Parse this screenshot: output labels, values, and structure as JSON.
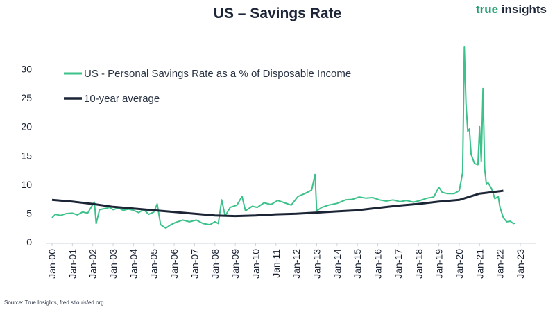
{
  "header": {
    "title": "US – Savings Rate"
  },
  "brand": {
    "word1": "true",
    "word2": "insights"
  },
  "source": "Source: True Insights, fred.stlouisfed.org",
  "colors": {
    "savings": "#3cc18a",
    "average": "#1b2536",
    "axis": "#cfd4da"
  },
  "chart_data": {
    "type": "line",
    "title": "US – Savings Rate",
    "xlabel": "",
    "ylabel": "",
    "ylim": [
      0,
      35
    ],
    "yticks": [
      0,
      5,
      10,
      15,
      20,
      25,
      30
    ],
    "xticks": [
      "Jan-00",
      "Jan-01",
      "Jan-02",
      "Jan-03",
      "Jan-04",
      "Jan-05",
      "Jan-06",
      "Jan-07",
      "Jan-08",
      "Jan-09",
      "Jan-10",
      "Jan-11",
      "Jan-12",
      "Jan-13",
      "Jan-14",
      "Jan-15",
      "Jan-16",
      "Jan-17",
      "Jan-18",
      "Jan-19",
      "Jan-20",
      "Jan-21",
      "Jan-22",
      "Jan-23"
    ],
    "grid": false,
    "legend": "top-left",
    "series": [
      {
        "name": "US - Personal Savings Rate as a % of Disposable Income",
        "points": [
          [
            "2000-01",
            4.2
          ],
          [
            "2000-03",
            4.8
          ],
          [
            "2000-06",
            4.6
          ],
          [
            "2000-09",
            4.9
          ],
          [
            "2001-01",
            5.0
          ],
          [
            "2001-04",
            4.7
          ],
          [
            "2001-07",
            5.2
          ],
          [
            "2001-10",
            5.0
          ],
          [
            "2002-01",
            6.5
          ],
          [
            "2002-02",
            6.9
          ],
          [
            "2002-03",
            3.2
          ],
          [
            "2002-05",
            5.6
          ],
          [
            "2002-08",
            5.8
          ],
          [
            "2002-11",
            6.0
          ],
          [
            "2003-01",
            5.6
          ],
          [
            "2003-04",
            5.9
          ],
          [
            "2003-07",
            5.5
          ],
          [
            "2003-10",
            5.7
          ],
          [
            "2004-01",
            5.5
          ],
          [
            "2004-04",
            5.1
          ],
          [
            "2004-07",
            5.6
          ],
          [
            "2004-10",
            4.8
          ],
          [
            "2005-01",
            5.2
          ],
          [
            "2005-03",
            6.6
          ],
          [
            "2005-05",
            3.0
          ],
          [
            "2005-08",
            2.4
          ],
          [
            "2005-11",
            3.0
          ],
          [
            "2006-02",
            3.4
          ],
          [
            "2006-06",
            3.8
          ],
          [
            "2006-10",
            3.5
          ],
          [
            "2007-02",
            3.8
          ],
          [
            "2007-06",
            3.2
          ],
          [
            "2007-10",
            3.0
          ],
          [
            "2008-01",
            3.5
          ],
          [
            "2008-03",
            3.2
          ],
          [
            "2008-05",
            7.3
          ],
          [
            "2008-07",
            4.5
          ],
          [
            "2008-10",
            6.0
          ],
          [
            "2009-02",
            6.4
          ],
          [
            "2009-05",
            7.9
          ],
          [
            "2009-07",
            5.4
          ],
          [
            "2009-11",
            6.2
          ],
          [
            "2010-02",
            6.0
          ],
          [
            "2010-06",
            6.8
          ],
          [
            "2010-10",
            6.5
          ],
          [
            "2011-02",
            7.2
          ],
          [
            "2011-06",
            6.8
          ],
          [
            "2011-10",
            6.4
          ],
          [
            "2012-02",
            7.9
          ],
          [
            "2012-06",
            8.4
          ],
          [
            "2012-10",
            9.0
          ],
          [
            "2012-12",
            11.7
          ],
          [
            "2013-01",
            5.4
          ],
          [
            "2013-04",
            6.0
          ],
          [
            "2013-08",
            6.4
          ],
          [
            "2014-01",
            6.7
          ],
          [
            "2014-06",
            7.3
          ],
          [
            "2014-10",
            7.4
          ],
          [
            "2015-02",
            7.8
          ],
          [
            "2015-06",
            7.6
          ],
          [
            "2015-10",
            7.7
          ],
          [
            "2016-02",
            7.3
          ],
          [
            "2016-06",
            7.1
          ],
          [
            "2016-10",
            7.3
          ],
          [
            "2017-02",
            7.0
          ],
          [
            "2017-06",
            7.2
          ],
          [
            "2017-10",
            6.9
          ],
          [
            "2018-02",
            7.2
          ],
          [
            "2018-06",
            7.6
          ],
          [
            "2018-10",
            7.8
          ],
          [
            "2019-01",
            9.5
          ],
          [
            "2019-03",
            8.6
          ],
          [
            "2019-06",
            8.4
          ],
          [
            "2019-10",
            8.4
          ],
          [
            "2020-01",
            8.9
          ],
          [
            "2020-03",
            12.0
          ],
          [
            "2020-04",
            33.8
          ],
          [
            "2020-05",
            24.0
          ],
          [
            "2020-06",
            19.2
          ],
          [
            "2020-07",
            19.6
          ],
          [
            "2020-08",
            15.2
          ],
          [
            "2020-10",
            13.6
          ],
          [
            "2020-12",
            13.4
          ],
          [
            "2021-01",
            20.0
          ],
          [
            "2021-02",
            14.0
          ],
          [
            "2021-03",
            26.6
          ],
          [
            "2021-04",
            12.7
          ],
          [
            "2021-05",
            10.0
          ],
          [
            "2021-06",
            10.3
          ],
          [
            "2021-08",
            9.3
          ],
          [
            "2021-10",
            7.5
          ],
          [
            "2021-12",
            7.9
          ],
          [
            "2022-01",
            6.0
          ],
          [
            "2022-03",
            4.2
          ],
          [
            "2022-05",
            3.5
          ],
          [
            "2022-07",
            3.6
          ],
          [
            "2022-09",
            3.2
          ],
          [
            "2022-10",
            3.3
          ]
        ]
      },
      {
        "name": "10-year average",
        "points": [
          [
            "2000-01",
            7.3
          ],
          [
            "2001-01",
            7.0
          ],
          [
            "2002-01",
            6.6
          ],
          [
            "2003-01",
            6.1
          ],
          [
            "2004-01",
            5.8
          ],
          [
            "2005-01",
            5.5
          ],
          [
            "2006-01",
            5.2
          ],
          [
            "2007-01",
            4.9
          ],
          [
            "2008-01",
            4.6
          ],
          [
            "2009-01",
            4.5
          ],
          [
            "2010-01",
            4.6
          ],
          [
            "2011-01",
            4.8
          ],
          [
            "2012-01",
            4.9
          ],
          [
            "2013-01",
            5.1
          ],
          [
            "2014-01",
            5.3
          ],
          [
            "2015-01",
            5.5
          ],
          [
            "2016-01",
            5.9
          ],
          [
            "2017-01",
            6.3
          ],
          [
            "2018-01",
            6.6
          ],
          [
            "2019-01",
            7.0
          ],
          [
            "2020-01",
            7.3
          ],
          [
            "2021-01",
            8.4
          ],
          [
            "2022-01",
            8.8
          ],
          [
            "2022-03",
            8.9
          ]
        ]
      }
    ]
  }
}
